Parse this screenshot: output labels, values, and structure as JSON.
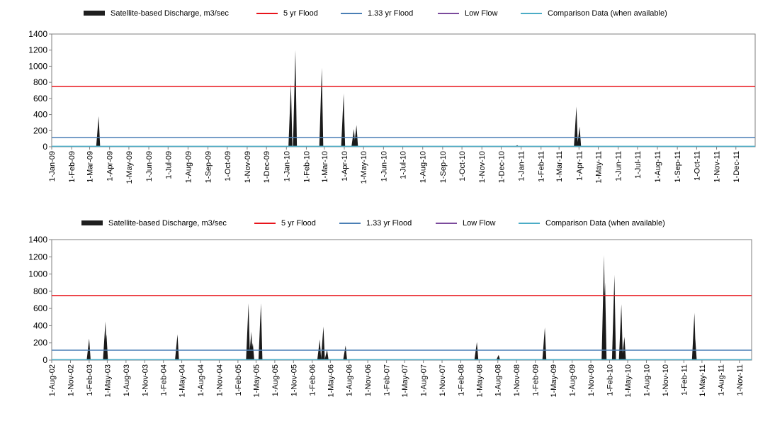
{
  "colors": {
    "discharge": "#1a1a1a",
    "flood5": "#e8141b",
    "flood133": "#4a7fb5",
    "lowflow": "#7b4a9c",
    "comparison": "#4bacc6",
    "axis": "#7f7f7f"
  },
  "chart_data": [
    {
      "type": "area",
      "legend": [
        "Satellite-based Discharge, m3/sec",
        "5 yr Flood",
        "1.33 yr Flood",
        "Low Flow",
        "Comparison Data (when available)"
      ],
      "legend_position": "top",
      "ylim": [
        0,
        1400
      ],
      "yticks": [
        "0",
        "200",
        "400",
        "600",
        "800",
        "1000",
        "1200",
        "1400"
      ],
      "xlim": [
        "2009-01-01",
        "2011-12-31"
      ],
      "x_tick_labels": [
        "1-Jan-09",
        "1-Feb-09",
        "1-Mar-09",
        "1-Apr-09",
        "1-May-09",
        "1-Jun-09",
        "1-Jul-09",
        "1-Aug-09",
        "1-Sep-09",
        "1-Oct-09",
        "1-Nov-09",
        "1-Dec-09",
        "1-Jan-10",
        "1-Feb-10",
        "1-Mar-10",
        "1-Apr-10",
        "1-May-10",
        "1-Jun-10",
        "1-Jul-10",
        "1-Aug-10",
        "1-Sep-10",
        "1-Oct-10",
        "1-Nov-10",
        "1-Dec-10",
        "1-Jan-11",
        "1-Feb-11",
        "1-Mar-11",
        "1-Apr-11",
        "1-May-11",
        "1-Jun-11",
        "1-Jul-11",
        "1-Aug-11",
        "1-Sep-11",
        "1-Oct-11",
        "1-Nov-11",
        "1-Dec-11"
      ],
      "x_tick_dates": [
        "2009-01-01",
        "2009-02-01",
        "2009-03-01",
        "2009-04-01",
        "2009-05-01",
        "2009-06-01",
        "2009-07-01",
        "2009-08-01",
        "2009-09-01",
        "2009-10-01",
        "2009-11-01",
        "2009-12-01",
        "2010-01-01",
        "2010-02-01",
        "2010-03-01",
        "2010-04-01",
        "2010-05-01",
        "2010-06-01",
        "2010-07-01",
        "2010-08-01",
        "2010-09-01",
        "2010-10-01",
        "2010-11-01",
        "2010-12-01",
        "2011-01-01",
        "2011-02-01",
        "2011-03-01",
        "2011-04-01",
        "2011-05-01",
        "2011-06-01",
        "2011-07-01",
        "2011-08-01",
        "2011-09-01",
        "2011-10-01",
        "2011-11-01",
        "2011-12-01"
      ],
      "thresholds": {
        "flood_5yr": 750,
        "flood_133yr": 115,
        "low_flow": 5
      },
      "grid": false,
      "discharge_peaks": [
        {
          "date": "2009-03-15",
          "value": 380
        },
        {
          "date": "2010-01-08",
          "value": 780
        },
        {
          "date": "2010-01-15",
          "value": 1200
        },
        {
          "date": "2010-02-25",
          "value": 980
        },
        {
          "date": "2010-03-31",
          "value": 660
        },
        {
          "date": "2010-04-16",
          "value": 220
        },
        {
          "date": "2010-04-20",
          "value": 270
        },
        {
          "date": "2010-12-26",
          "value": 20
        },
        {
          "date": "2011-03-28",
          "value": 500
        },
        {
          "date": "2011-04-02",
          "value": 250
        }
      ]
    },
    {
      "type": "area",
      "legend": [
        "Satellite-based Discharge, m3/sec",
        "5 yr Flood",
        "1.33 yr Flood",
        "Low Flow",
        "Comparison Data (when available)"
      ],
      "legend_position": "top",
      "ylim": [
        0,
        1400
      ],
      "yticks": [
        "0",
        "200",
        "400",
        "600",
        "800",
        "1000",
        "1200",
        "1400"
      ],
      "xlim": [
        "2002-08-01",
        "2011-12-31"
      ],
      "x_tick_labels": [
        "1-Aug-02",
        "1-Nov-02",
        "1-Feb-03",
        "1-May-03",
        "1-Aug-03",
        "1-Nov-03",
        "1-Feb-04",
        "1-May-04",
        "1-Aug-04",
        "1-Nov-04",
        "1-Feb-05",
        "1-May-05",
        "1-Aug-05",
        "1-Nov-05",
        "1-Feb-06",
        "1-May-06",
        "1-Aug-06",
        "1-Nov-06",
        "1-Feb-07",
        "1-May-07",
        "1-Aug-07",
        "1-Nov-07",
        "1-Feb-08",
        "1-May-08",
        "1-Aug-08",
        "1-Nov-08",
        "1-Feb-09",
        "1-May-09",
        "1-Aug-09",
        "1-Nov-09",
        "1-Feb-10",
        "1-May-10",
        "1-Aug-10",
        "1-Nov-10",
        "1-Feb-11",
        "1-May-11",
        "1-Aug-11",
        "1-Nov-11"
      ],
      "x_tick_dates": [
        "2002-08-01",
        "2002-11-01",
        "2003-02-01",
        "2003-05-01",
        "2003-08-01",
        "2003-11-01",
        "2004-02-01",
        "2004-05-01",
        "2004-08-01",
        "2004-11-01",
        "2005-02-01",
        "2005-05-01",
        "2005-08-01",
        "2005-11-01",
        "2006-02-01",
        "2006-05-01",
        "2006-08-01",
        "2006-11-01",
        "2007-02-01",
        "2007-05-01",
        "2007-08-01",
        "2007-11-01",
        "2008-02-01",
        "2008-05-01",
        "2008-08-01",
        "2008-11-01",
        "2009-02-01",
        "2009-05-01",
        "2009-08-01",
        "2009-11-01",
        "2010-02-01",
        "2010-05-01",
        "2010-08-01",
        "2010-11-01",
        "2011-02-01",
        "2011-05-01",
        "2011-08-01",
        "2011-11-01"
      ],
      "thresholds": {
        "flood_5yr": 750,
        "flood_133yr": 115,
        "low_flow": 5
      },
      "grid": false,
      "discharge_peaks": [
        {
          "date": "2003-02-01",
          "value": 250
        },
        {
          "date": "2003-04-22",
          "value": 450
        },
        {
          "date": "2003-04-27",
          "value": 300
        },
        {
          "date": "2004-04-10",
          "value": 300
        },
        {
          "date": "2005-03-25",
          "value": 660
        },
        {
          "date": "2005-04-08",
          "value": 330
        },
        {
          "date": "2005-04-15",
          "value": 200
        },
        {
          "date": "2005-05-25",
          "value": 660
        },
        {
          "date": "2006-03-10",
          "value": 240
        },
        {
          "date": "2006-03-28",
          "value": 390
        },
        {
          "date": "2006-04-15",
          "value": 120
        },
        {
          "date": "2006-07-15",
          "value": 170
        },
        {
          "date": "2008-04-20",
          "value": 210
        },
        {
          "date": "2008-08-05",
          "value": 60
        },
        {
          "date": "2009-03-20",
          "value": 380
        },
        {
          "date": "2010-01-05",
          "value": 1220
        },
        {
          "date": "2010-01-10",
          "value": 900
        },
        {
          "date": "2010-02-25",
          "value": 990
        },
        {
          "date": "2010-03-31",
          "value": 650
        },
        {
          "date": "2010-04-15",
          "value": 270
        },
        {
          "date": "2011-03-25",
          "value": 550
        },
        {
          "date": "2011-03-29",
          "value": 250
        }
      ]
    }
  ]
}
